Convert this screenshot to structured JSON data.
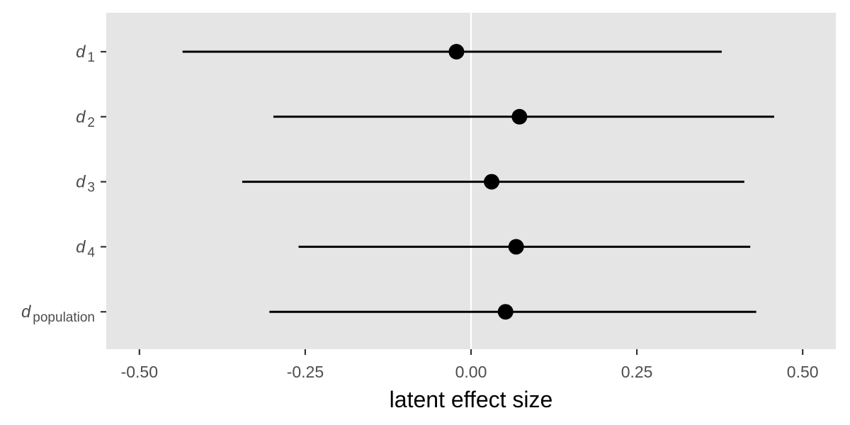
{
  "chart_data": {
    "type": "scatter",
    "title": "",
    "xlabel": "latent effect size",
    "ylabel": "",
    "xlim": [
      -0.55,
      0.55
    ],
    "x_ticks": [
      -0.5,
      -0.25,
      0.0,
      0.25,
      0.5
    ],
    "x_tick_labels": [
      "-0.50",
      "-0.25",
      "0.00",
      "0.25",
      "0.50"
    ],
    "reference_line_x": 0,
    "grid": false,
    "legend": "none",
    "series": [
      {
        "label_base": "d",
        "label_sub": "1",
        "estimate": -0.022,
        "lower": -0.435,
        "upper": 0.378
      },
      {
        "label_base": "d",
        "label_sub": "2",
        "estimate": 0.073,
        "lower": -0.298,
        "upper": 0.457
      },
      {
        "label_base": "d",
        "label_sub": "3",
        "estimate": 0.031,
        "lower": -0.345,
        "upper": 0.412
      },
      {
        "label_base": "d",
        "label_sub": "4",
        "estimate": 0.068,
        "lower": -0.26,
        "upper": 0.421
      },
      {
        "label_base": "d",
        "label_sub": "population",
        "estimate": 0.052,
        "lower": -0.304,
        "upper": 0.43
      }
    ],
    "colors": {
      "panel": "#e5e5e5",
      "points": "#000000",
      "reference_line": "#ffffff",
      "tick_labels": "#4d4d4d"
    }
  }
}
